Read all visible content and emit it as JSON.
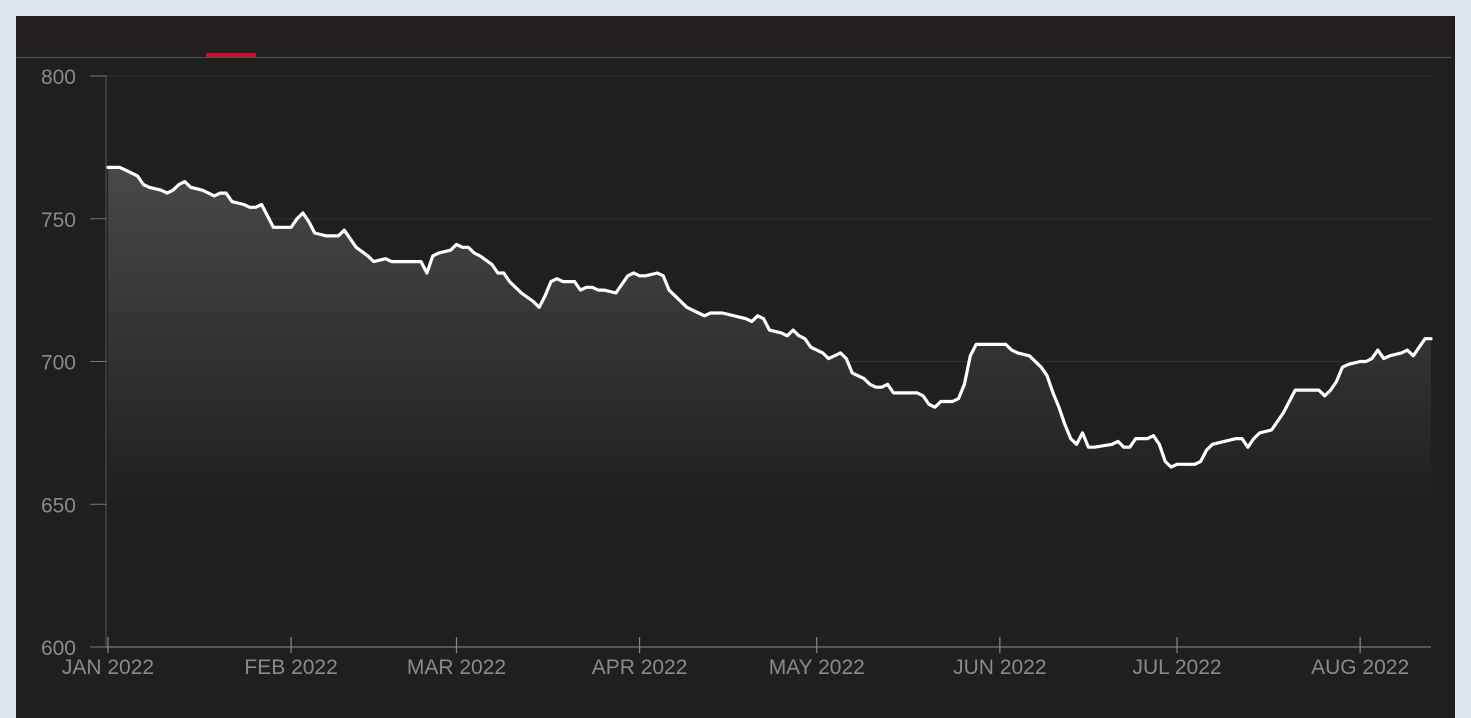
{
  "colors": {
    "background": "#1f1f1f",
    "line": "#ffffff",
    "accent": "#c8102e",
    "grid": "#333333",
    "tick_text": "#8a8a8a"
  },
  "header": {
    "active_tab_indicator_color": "#c8102e"
  },
  "chart_data": {
    "type": "area",
    "title": "",
    "xlabel": "",
    "ylabel": "",
    "x_start": "2022-01-01",
    "ylim": [
      600,
      800
    ],
    "yticks": [
      600,
      650,
      700,
      750,
      800
    ],
    "ytick_labels": [
      "600",
      "650",
      "700",
      "750",
      "800"
    ],
    "xticks": [
      {
        "date": "2022-01-01",
        "label": "JAN 2022"
      },
      {
        "date": "2022-02-01",
        "label": "FEB 2022"
      },
      {
        "date": "2022-03-01",
        "label": "MAR 2022"
      },
      {
        "date": "2022-04-01",
        "label": "APR 2022"
      },
      {
        "date": "2022-05-01",
        "label": "MAY 2022"
      },
      {
        "date": "2022-06-01",
        "label": "JUN 2022"
      },
      {
        "date": "2022-07-01",
        "label": "JUL 2022"
      },
      {
        "date": "2022-08-01",
        "label": "AUG 2022"
      }
    ],
    "grid": true,
    "series": [
      {
        "values": [
          [
            "2022-01-01",
            768
          ],
          [
            "2022-01-03",
            768
          ],
          [
            "2022-01-04",
            767
          ],
          [
            "2022-01-05",
            766
          ],
          [
            "2022-01-06",
            765
          ],
          [
            "2022-01-07",
            762
          ],
          [
            "2022-01-08",
            761
          ],
          [
            "2022-01-10",
            760
          ],
          [
            "2022-01-11",
            759
          ],
          [
            "2022-01-12",
            760
          ],
          [
            "2022-01-13",
            762
          ],
          [
            "2022-01-14",
            763
          ],
          [
            "2022-01-15",
            761
          ],
          [
            "2022-01-17",
            760
          ],
          [
            "2022-01-19",
            758
          ],
          [
            "2022-01-20",
            759
          ],
          [
            "2022-01-21",
            759
          ],
          [
            "2022-01-22",
            756
          ],
          [
            "2022-01-24",
            755
          ],
          [
            "2022-01-25",
            754
          ],
          [
            "2022-01-26",
            754
          ],
          [
            "2022-01-27",
            755
          ],
          [
            "2022-01-28",
            751
          ],
          [
            "2022-01-29",
            747
          ],
          [
            "2022-02-01",
            747
          ],
          [
            "2022-02-02",
            750
          ],
          [
            "2022-02-03",
            752
          ],
          [
            "2022-02-04",
            749
          ],
          [
            "2022-02-05",
            745
          ],
          [
            "2022-02-07",
            744
          ],
          [
            "2022-02-08",
            744
          ],
          [
            "2022-02-09",
            744
          ],
          [
            "2022-02-10",
            746
          ],
          [
            "2022-02-11",
            743
          ],
          [
            "2022-02-12",
            740
          ],
          [
            "2022-02-14",
            737
          ],
          [
            "2022-02-15",
            735
          ],
          [
            "2022-02-17",
            736
          ],
          [
            "2022-02-18",
            735
          ],
          [
            "2022-02-20",
            735
          ],
          [
            "2022-02-22",
            735
          ],
          [
            "2022-02-23",
            735
          ],
          [
            "2022-02-24",
            731
          ],
          [
            "2022-02-25",
            737
          ],
          [
            "2022-02-26",
            738
          ],
          [
            "2022-02-28",
            739
          ],
          [
            "2022-03-01",
            741
          ],
          [
            "2022-03-02",
            740
          ],
          [
            "2022-03-03",
            740
          ],
          [
            "2022-03-04",
            738
          ],
          [
            "2022-03-05",
            737
          ],
          [
            "2022-03-07",
            734
          ],
          [
            "2022-03-08",
            731
          ],
          [
            "2022-03-09",
            731
          ],
          [
            "2022-03-10",
            728
          ],
          [
            "2022-03-11",
            726
          ],
          [
            "2022-03-12",
            724
          ],
          [
            "2022-03-14",
            721
          ],
          [
            "2022-03-15",
            719
          ],
          [
            "2022-03-16",
            723
          ],
          [
            "2022-03-17",
            728
          ],
          [
            "2022-03-18",
            729
          ],
          [
            "2022-03-19",
            728
          ],
          [
            "2022-03-21",
            728
          ],
          [
            "2022-03-22",
            725
          ],
          [
            "2022-03-23",
            726
          ],
          [
            "2022-03-24",
            726
          ],
          [
            "2022-03-25",
            725
          ],
          [
            "2022-03-26",
            725
          ],
          [
            "2022-03-28",
            724
          ],
          [
            "2022-03-29",
            727
          ],
          [
            "2022-03-30",
            730
          ],
          [
            "2022-03-31",
            731
          ],
          [
            "2022-04-01",
            730
          ],
          [
            "2022-04-02",
            730
          ],
          [
            "2022-04-04",
            731
          ],
          [
            "2022-04-05",
            730
          ],
          [
            "2022-04-06",
            725
          ],
          [
            "2022-04-07",
            723
          ],
          [
            "2022-04-08",
            721
          ],
          [
            "2022-04-09",
            719
          ],
          [
            "2022-04-11",
            717
          ],
          [
            "2022-04-12",
            716
          ],
          [
            "2022-04-13",
            717
          ],
          [
            "2022-04-15",
            717
          ],
          [
            "2022-04-17",
            716
          ],
          [
            "2022-04-19",
            715
          ],
          [
            "2022-04-20",
            714
          ],
          [
            "2022-04-21",
            716
          ],
          [
            "2022-04-22",
            715
          ],
          [
            "2022-04-23",
            711
          ],
          [
            "2022-04-25",
            710
          ],
          [
            "2022-04-26",
            709
          ],
          [
            "2022-04-27",
            711
          ],
          [
            "2022-04-28",
            709
          ],
          [
            "2022-04-29",
            708
          ],
          [
            "2022-04-30",
            705
          ],
          [
            "2022-05-02",
            703
          ],
          [
            "2022-05-03",
            701
          ],
          [
            "2022-05-04",
            702
          ],
          [
            "2022-05-05",
            703
          ],
          [
            "2022-05-06",
            701
          ],
          [
            "2022-05-07",
            696
          ],
          [
            "2022-05-09",
            694
          ],
          [
            "2022-05-10",
            692
          ],
          [
            "2022-05-11",
            691
          ],
          [
            "2022-05-12",
            691
          ],
          [
            "2022-05-13",
            692
          ],
          [
            "2022-05-14",
            689
          ],
          [
            "2022-05-16",
            689
          ],
          [
            "2022-05-18",
            689
          ],
          [
            "2022-05-19",
            688
          ],
          [
            "2022-05-20",
            685
          ],
          [
            "2022-05-21",
            684
          ],
          [
            "2022-05-22",
            686
          ],
          [
            "2022-05-24",
            686
          ],
          [
            "2022-05-25",
            687
          ],
          [
            "2022-05-26",
            692
          ],
          [
            "2022-05-27",
            702
          ],
          [
            "2022-05-28",
            706
          ],
          [
            "2022-05-30",
            706
          ],
          [
            "2022-06-01",
            706
          ],
          [
            "2022-06-02",
            706
          ],
          [
            "2022-06-03",
            704
          ],
          [
            "2022-06-04",
            703
          ],
          [
            "2022-06-06",
            702
          ],
          [
            "2022-06-07",
            700
          ],
          [
            "2022-06-08",
            698
          ],
          [
            "2022-06-09",
            695
          ],
          [
            "2022-06-10",
            689
          ],
          [
            "2022-06-11",
            684
          ],
          [
            "2022-06-12",
            678
          ],
          [
            "2022-06-13",
            673
          ],
          [
            "2022-06-14",
            671
          ],
          [
            "2022-06-15",
            675
          ],
          [
            "2022-06-16",
            670
          ],
          [
            "2022-06-17",
            670
          ],
          [
            "2022-06-20",
            671
          ],
          [
            "2022-06-21",
            672
          ],
          [
            "2022-06-22",
            670
          ],
          [
            "2022-06-23",
            670
          ],
          [
            "2022-06-24",
            673
          ],
          [
            "2022-06-26",
            673
          ],
          [
            "2022-06-27",
            674
          ],
          [
            "2022-06-28",
            671
          ],
          [
            "2022-06-29",
            665
          ],
          [
            "2022-06-30",
            663
          ],
          [
            "2022-07-01",
            664
          ],
          [
            "2022-07-04",
            664
          ],
          [
            "2022-07-05",
            665
          ],
          [
            "2022-07-06",
            669
          ],
          [
            "2022-07-07",
            671
          ],
          [
            "2022-07-09",
            672
          ],
          [
            "2022-07-11",
            673
          ],
          [
            "2022-07-12",
            673
          ],
          [
            "2022-07-13",
            670
          ],
          [
            "2022-07-14",
            673
          ],
          [
            "2022-07-15",
            675
          ],
          [
            "2022-07-17",
            676
          ],
          [
            "2022-07-18",
            679
          ],
          [
            "2022-07-19",
            682
          ],
          [
            "2022-07-20",
            686
          ],
          [
            "2022-07-21",
            690
          ],
          [
            "2022-07-22",
            690
          ],
          [
            "2022-07-25",
            690
          ],
          [
            "2022-07-26",
            688
          ],
          [
            "2022-07-27",
            690
          ],
          [
            "2022-07-28",
            693
          ],
          [
            "2022-07-29",
            698
          ],
          [
            "2022-07-30",
            699
          ],
          [
            "2022-08-01",
            700
          ],
          [
            "2022-08-02",
            700
          ],
          [
            "2022-08-03",
            701
          ],
          [
            "2022-08-04",
            704
          ],
          [
            "2022-08-05",
            701
          ],
          [
            "2022-08-06",
            702
          ],
          [
            "2022-08-08",
            703
          ],
          [
            "2022-08-09",
            704
          ],
          [
            "2022-08-10",
            702
          ],
          [
            "2022-08-11",
            705
          ],
          [
            "2022-08-12",
            708
          ],
          [
            "2022-08-13",
            708
          ]
        ]
      }
    ]
  }
}
